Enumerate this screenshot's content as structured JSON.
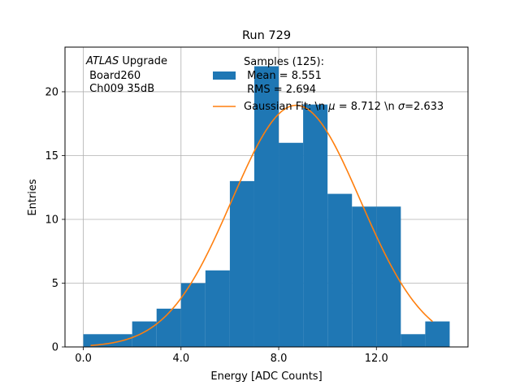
{
  "chart_data": {
    "type": "bar",
    "title": "Run 729",
    "xlabel": "Energy [ADC Counts]",
    "ylabel": "Entries",
    "xlim": [
      -0.75,
      15.75
    ],
    "ylim": [
      0,
      23.5
    ],
    "grid": true,
    "x_ticks": [
      0,
      4,
      8,
      12
    ],
    "x_tick_labels": [
      "0.0",
      "4.0",
      "8.0",
      "12.0"
    ],
    "y_ticks": [
      0,
      5,
      10,
      15,
      20
    ],
    "y_tick_labels": [
      "0",
      "5",
      "10",
      "15",
      "20"
    ],
    "bin_edges": [
      0,
      2,
      3,
      4,
      5,
      6,
      7,
      8,
      9,
      10,
      11,
      12,
      13,
      14,
      15
    ],
    "values": [
      1,
      2,
      3,
      5,
      6,
      13,
      22,
      16,
      19,
      12,
      11,
      11,
      1,
      2
    ],
    "series": [
      {
        "name": "Samples (125):\n Mean = 8.551\n RMS = 2.694",
        "kind": "histogram",
        "color": "#1f77b4"
      },
      {
        "name": "Gaussian Fit: \\n μ = 8.712 \\n σ=2.633",
        "kind": "line",
        "color": "#ff7f0e",
        "amplitude": 18.94,
        "mu": 8.712,
        "sigma": 2.633,
        "x_range": [
          0.3,
          14.3
        ]
      }
    ],
    "legend_placement": "upper-right",
    "legend": {
      "hist_lines": [
        "Samples (125):",
        " Mean = 8.551",
        " RMS = 2.694"
      ],
      "fit_label_prefix": "Gaussian Fit: \\n ",
      "fit_mu_symbol": "μ",
      "fit_mu_text": " = 8.712 \\n ",
      "fit_sigma_symbol": "σ",
      "fit_sigma_text": "=2.633"
    },
    "annotation": {
      "italic": "ATLAS",
      "rest": " Upgrade",
      "line2": " Board260",
      "line3": " Ch009 35dB"
    }
  }
}
